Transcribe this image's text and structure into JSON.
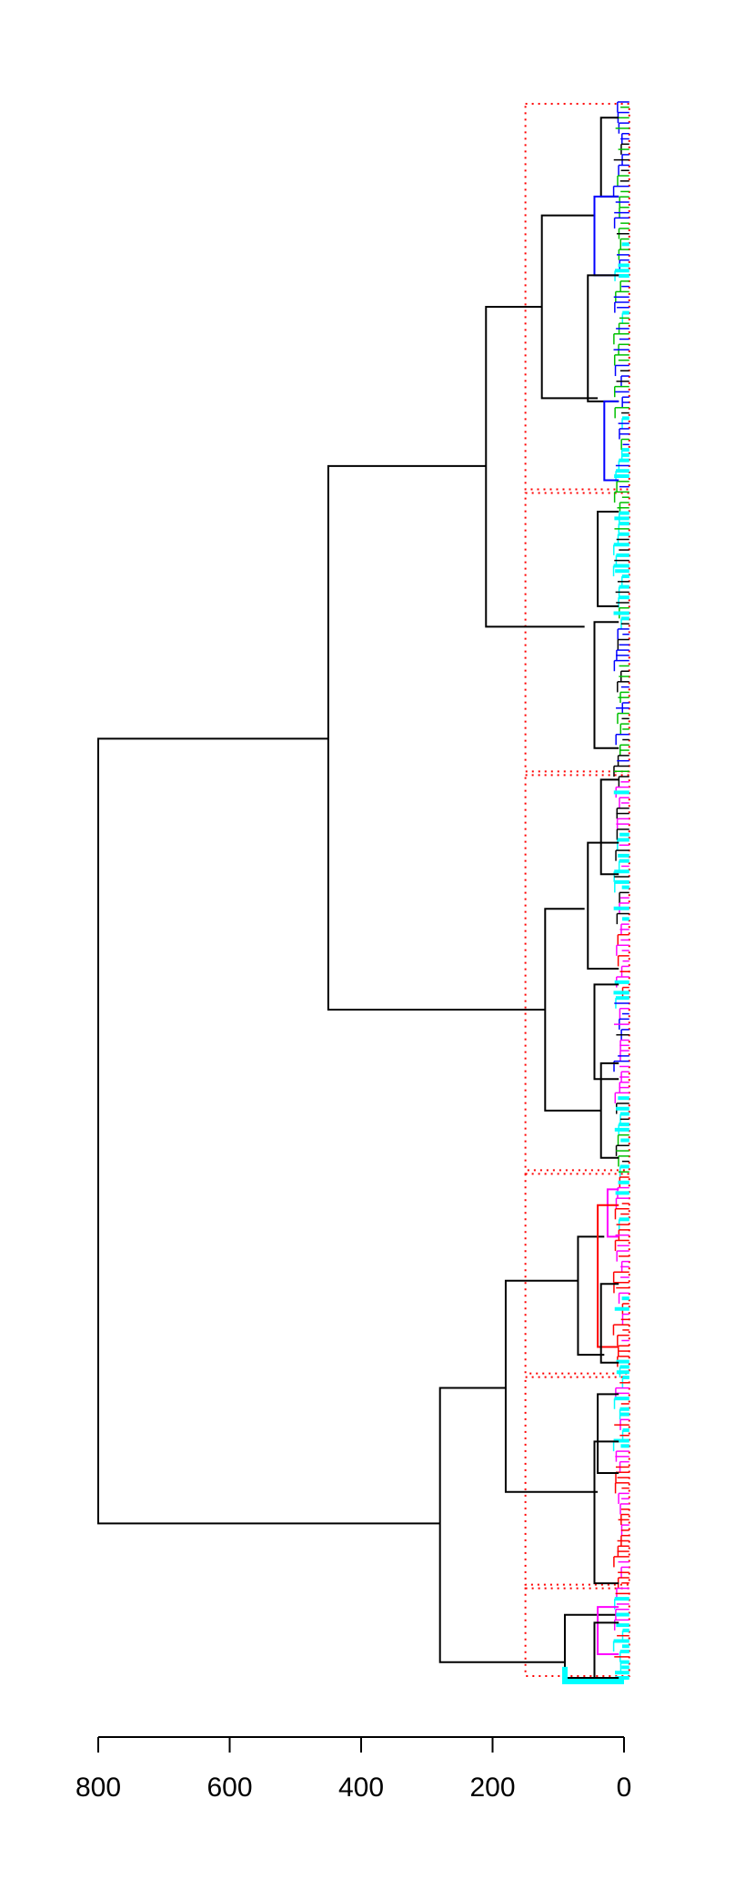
{
  "chart_data": {
    "type": "dendrogram",
    "orientation": "horizontal",
    "xlim": [
      800,
      0
    ],
    "x_ticks": [
      {
        "value": 800,
        "label": "800"
      },
      {
        "value": 600,
        "label": "600"
      },
      {
        "value": 400,
        "label": "400"
      },
      {
        "value": 200,
        "label": "200"
      },
      {
        "value": 0,
        "label": "0"
      }
    ],
    "cut_height": 150,
    "cluster_box_color": "#ff0000",
    "cluster_boxes_fraction": [
      0.0,
      0.247,
      0.426,
      0.679,
      0.808,
      0.942,
      1.0
    ],
    "leaf_colors": {
      "green": "#00c000",
      "blue": "#0000ff",
      "cyan": "#00ffff",
      "magenta": "#ff00ff",
      "red": "#ff0000",
      "black": "#000000"
    },
    "merges": [
      {
        "name": "root",
        "height": 800,
        "y_from": 0.404,
        "y_to": 0.902
      },
      {
        "name": "upper",
        "height": 450,
        "y_from": 0.231,
        "y_to": 0.576
      },
      {
        "name": "upper-a",
        "height": 210,
        "y_from": 0.13,
        "y_to": 0.333
      },
      {
        "name": "upper-a1",
        "height": 125,
        "y_from": 0.072,
        "y_to": 0.188
      },
      {
        "name": "middle",
        "height": 120,
        "y_from": 0.512,
        "y_to": 0.64
      },
      {
        "name": "lower",
        "height": 280,
        "y_from": 0.816,
        "y_to": 0.99
      },
      {
        "name": "lower-a",
        "height": 180,
        "y_from": 0.748,
        "y_to": 0.882
      },
      {
        "name": "lower-a1",
        "height": 70,
        "y_from": 0.72,
        "y_to": 0.795
      },
      {
        "name": "lower-b",
        "height": 90,
        "y_from": 0.96,
        "y_to": 1.0
      }
    ]
  }
}
